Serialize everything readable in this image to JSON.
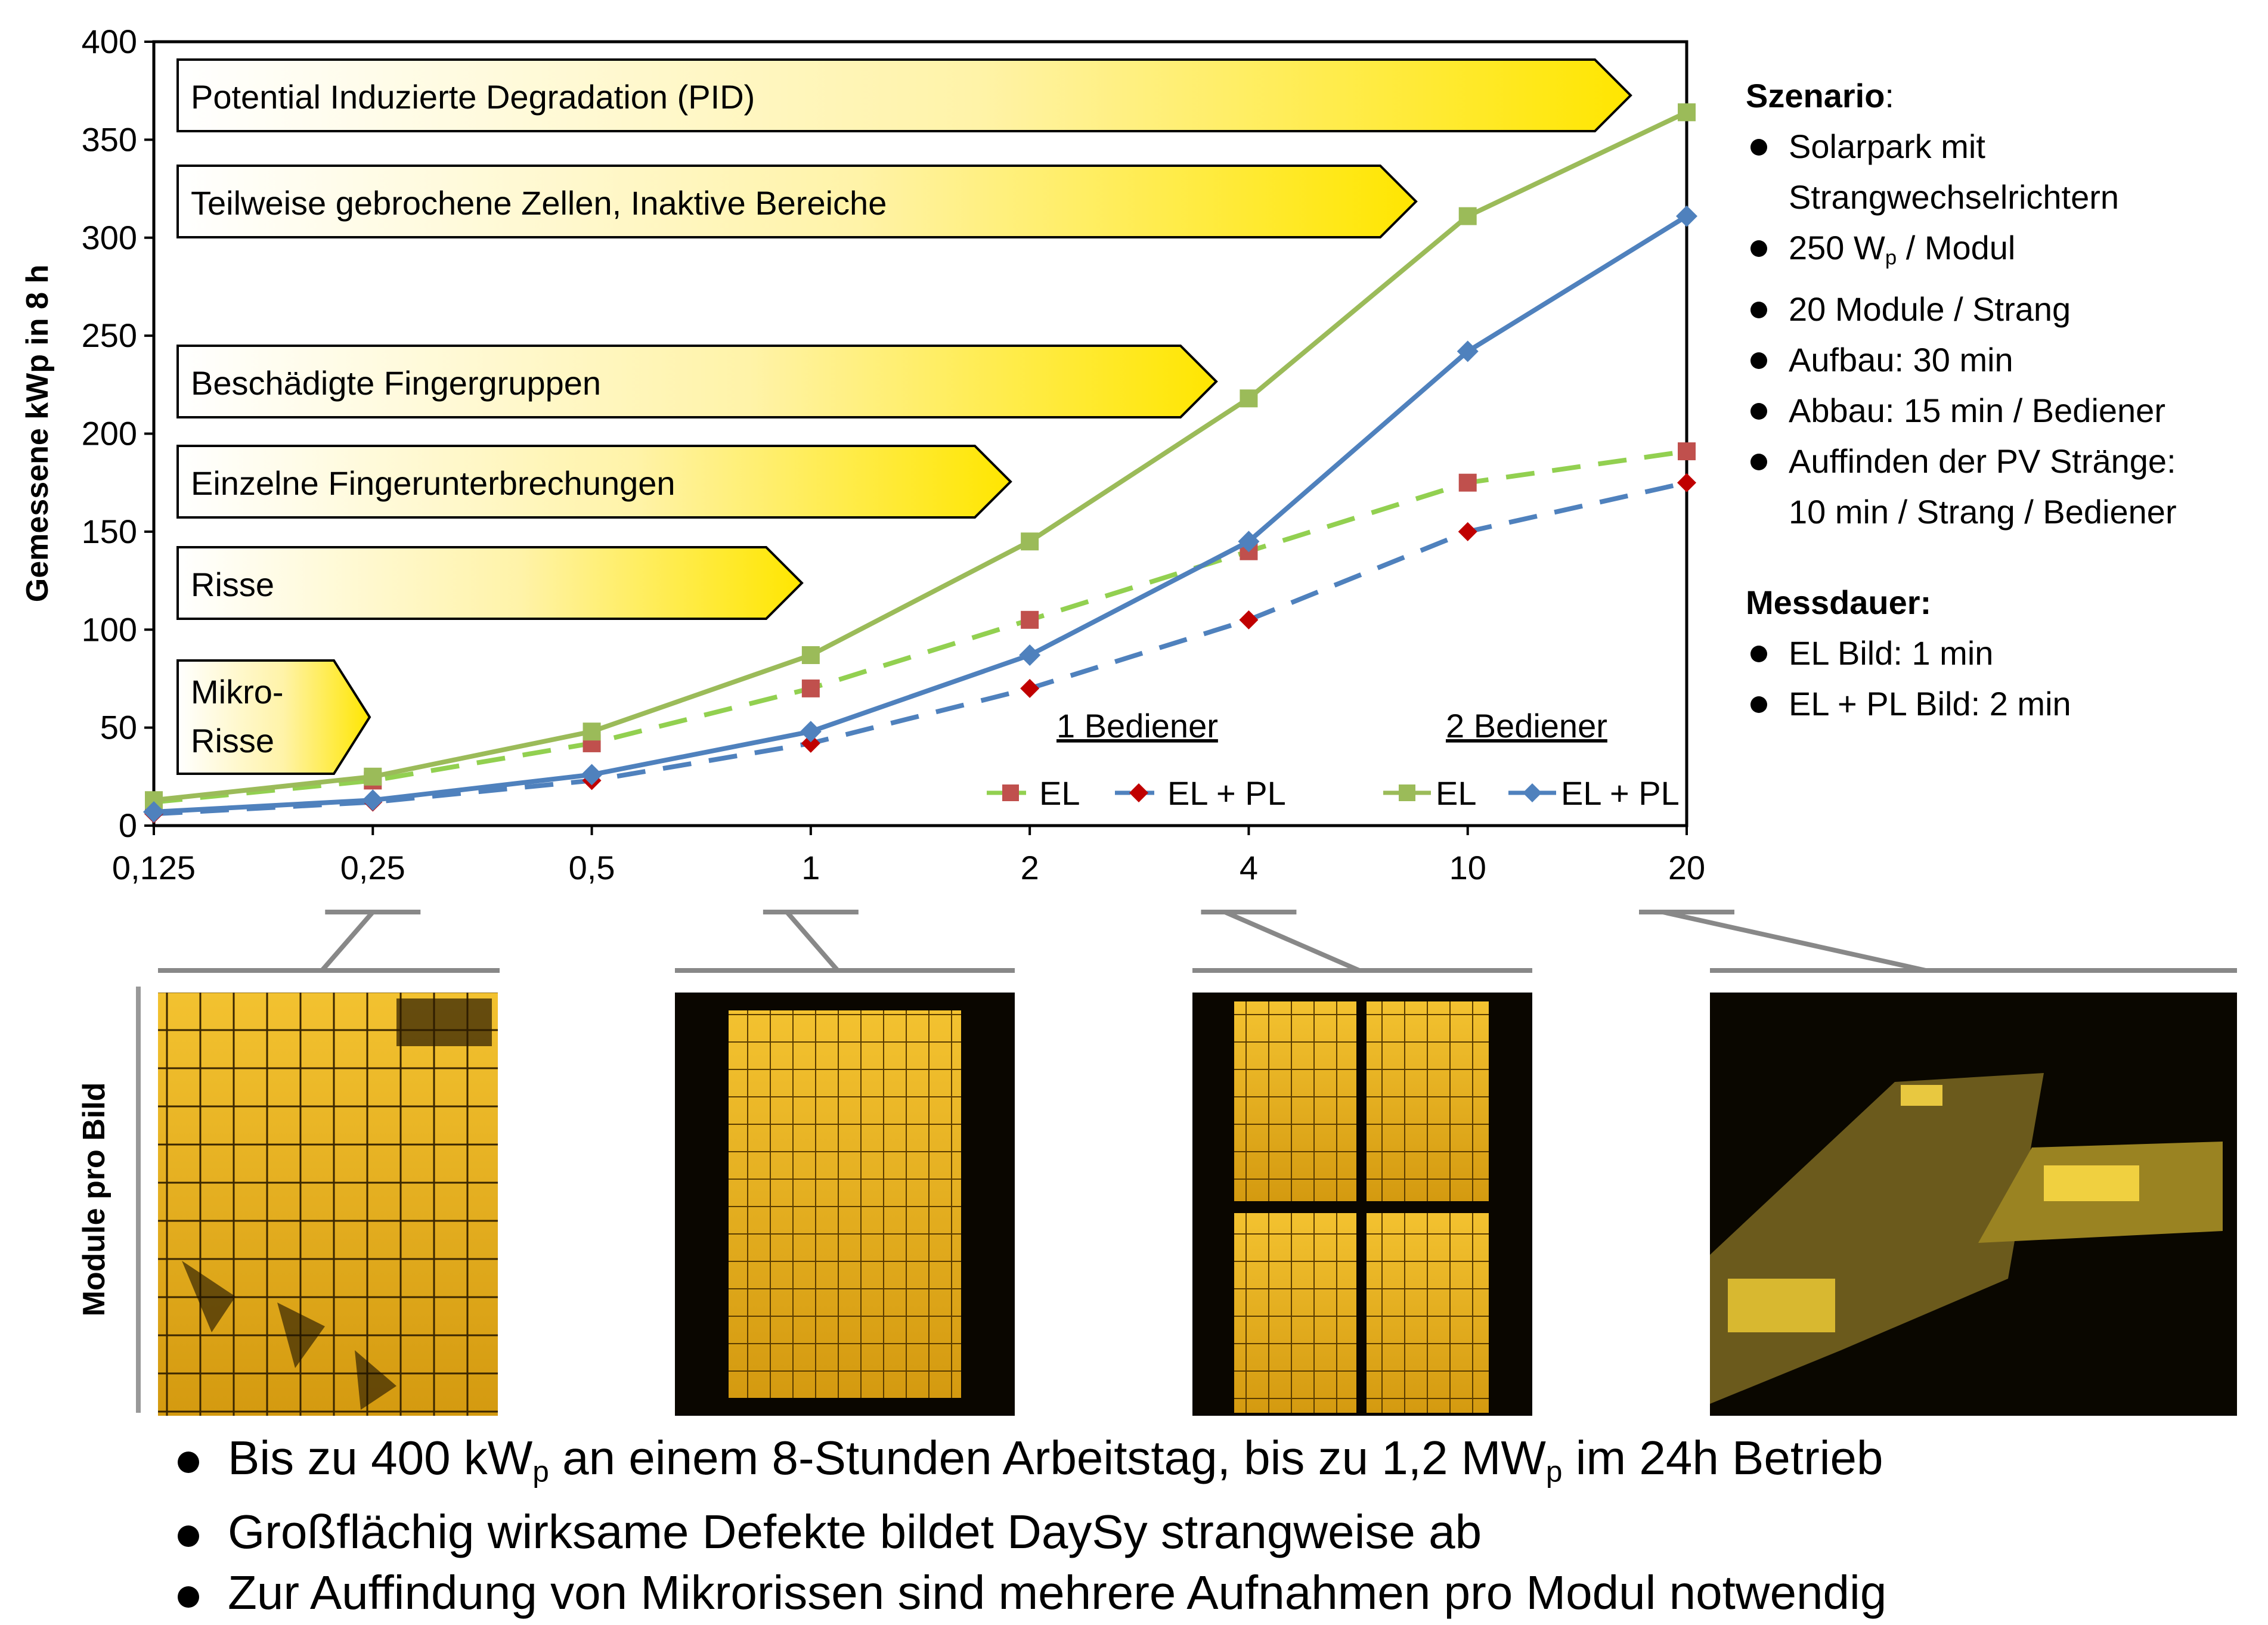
{
  "chart_data": {
    "type": "line",
    "x_categories": [
      "0,125",
      "0,25",
      "0,5",
      "1",
      "2",
      "4",
      "10",
      "20"
    ],
    "ylabel": "Gemessene kWp in 8 h",
    "xlabel": "Module pro Bild",
    "ylim": [
      0,
      400
    ],
    "y_ticks": [
      "0",
      "50",
      "100",
      "150",
      "200",
      "250",
      "300",
      "350",
      "400"
    ],
    "groups": [
      "1 Bediener",
      "2 Bediener"
    ],
    "series": [
      {
        "name": "EL",
        "group": "1 Bediener",
        "color": "#c0504d",
        "line_color": "#92d050",
        "dashed": true,
        "marker": "square",
        "values": [
          12,
          23,
          42,
          70,
          105,
          140,
          175,
          191
        ]
      },
      {
        "name": "EL + PL",
        "group": "1 Bediener",
        "color": "#c00000",
        "line_color": "#4f81bd",
        "dashed": true,
        "marker": "diamond",
        "values": [
          6,
          12,
          23,
          42,
          70,
          105,
          150,
          175
        ]
      },
      {
        "name": "EL",
        "group": "2 Bediener",
        "color": "#9bbb59",
        "line_color": "#9bbb59",
        "dashed": false,
        "marker": "square",
        "values": [
          13,
          25,
          48,
          87,
          145,
          218,
          311,
          364
        ]
      },
      {
        "name": "EL + PL",
        "group": "2 Bediener",
        "color": "#4f81bd",
        "line_color": "#4f81bd",
        "dashed": false,
        "marker": "diamond",
        "values": [
          7,
          13,
          26,
          48,
          87,
          145,
          242,
          311
        ]
      }
    ],
    "arrows": [
      {
        "label": "Potential Induzierte Degradation (PID)",
        "ends_at": "20"
      },
      {
        "label": "Teilweise gebrochene Zellen, Inaktive Bereiche",
        "ends_at": "10"
      },
      {
        "label": "Beschädigte Fingergruppen",
        "ends_at": "4"
      },
      {
        "label": "Einzelne Fingerunterbrechungen",
        "ends_at": "2"
      },
      {
        "label": "Risse",
        "ends_at": "1"
      },
      {
        "label": "Mikro-\nRisse",
        "ends_at": "0,25"
      }
    ]
  },
  "sidebar": {
    "scenario_heading": "Szenario",
    "scenario_items": [
      "Solarpark mit Strangwechselrichtern",
      "250 Wp / Modul",
      "20 Module / Strang",
      "Aufbau: 30 min",
      "Abbau: 15 min / Bediener",
      "Auffinden der PV Stränge: 10 min / Strang / Bediener"
    ],
    "duration_heading": "Messdauer:",
    "duration_items": [
      "EL Bild: 1 min",
      "EL + PL Bild: 2 min"
    ]
  },
  "photos": [
    {
      "caption": "",
      "x_category": "0,25",
      "kind": "single-module-closeup"
    },
    {
      "caption": "",
      "x_category": "1",
      "kind": "single-module"
    },
    {
      "caption": "",
      "x_category": "4",
      "kind": "four-modules"
    },
    {
      "caption": "",
      "x_category": "20",
      "kind": "string-field"
    }
  ],
  "bullets": [
    "Bis zu 400 kWp an einem 8-Stunden Arbeitstag, bis zu 1,2 MWp im 24h Betrieb",
    "Großflächig wirksame Defekte bildet DaySy strangweise ab",
    "Zur Auffindung von Mikrorissen sind mehrere Aufnahmen pro Modul notwendig"
  ]
}
